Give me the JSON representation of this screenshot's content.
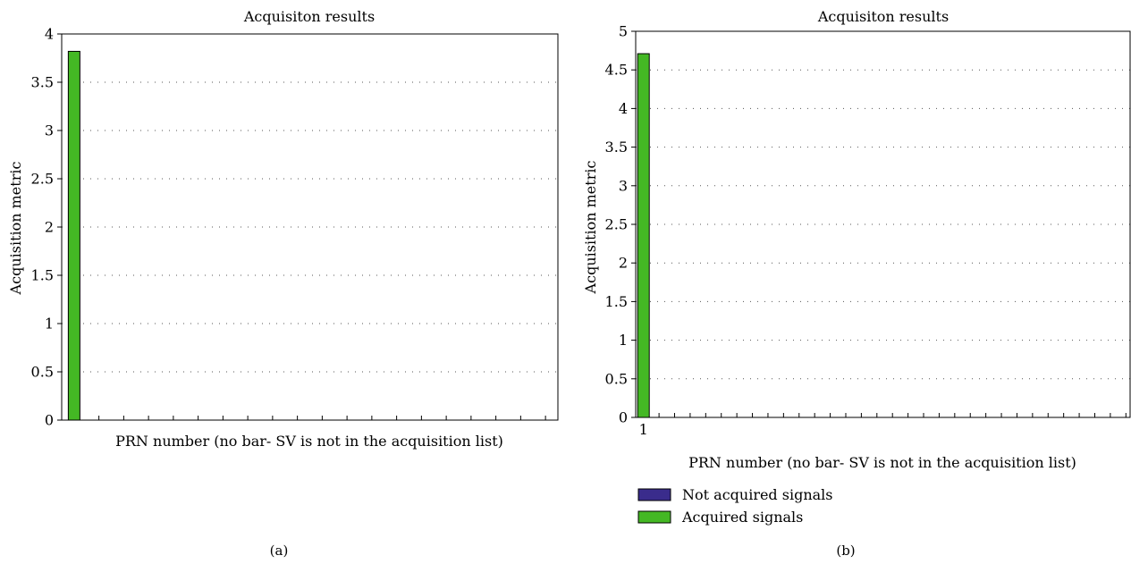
{
  "colors": {
    "acquired": "#44b824",
    "not_acquired": "#3a2c8c",
    "grid": "#555555",
    "axis": "#000000"
  },
  "chart_data": [
    {
      "panel_label": "(a)",
      "type": "bar",
      "title": "Acquisiton results",
      "xlabel": "PRN number (no bar- SV is not in the acquisition list)",
      "ylabel": "Acquisition metric",
      "ylim": [
        0,
        4
      ],
      "yticks": [
        0,
        0.5,
        1,
        1.5,
        2,
        2.5,
        3,
        3.5,
        4
      ],
      "ytick_labels": [
        "0",
        "0.5",
        "1",
        "1.5",
        "2",
        "2.5",
        "3",
        "3.5",
        "4"
      ],
      "xlim": [
        0.5,
        20.5
      ],
      "x_tick_count": 20,
      "x_tick_labels": [],
      "grid": "horizontal dotted",
      "bars": [
        {
          "x": 1,
          "value": 3.82,
          "status": "acquired"
        }
      ],
      "legend": null
    },
    {
      "panel_label": "(b)",
      "type": "bar",
      "title": "Acquisiton results",
      "xlabel": "PRN number (no bar- SV is not in the acquisition list)",
      "ylabel": "Acquisition metric",
      "ylim": [
        0,
        5
      ],
      "yticks": [
        0,
        0.5,
        1,
        1.5,
        2,
        2.5,
        3,
        3.5,
        4,
        4.5,
        5
      ],
      "ytick_labels": [
        "0",
        "0.5",
        "1",
        "1.5",
        "2",
        "2.5",
        "3",
        "3.5",
        "4",
        "4.5",
        "5"
      ],
      "xlim": [
        0.5,
        32.5
      ],
      "x_tick_count": 32,
      "x_tick_labels": [
        {
          "x": 1,
          "label": "1"
        }
      ],
      "grid": "horizontal dotted",
      "bars": [
        {
          "x": 1,
          "value": 4.71,
          "status": "acquired"
        }
      ],
      "legend": {
        "placement": "below",
        "entries": [
          {
            "label": "Not acquired signals",
            "status": "not_acquired"
          },
          {
            "label": "Acquired signals",
            "status": "acquired"
          }
        ]
      }
    }
  ]
}
